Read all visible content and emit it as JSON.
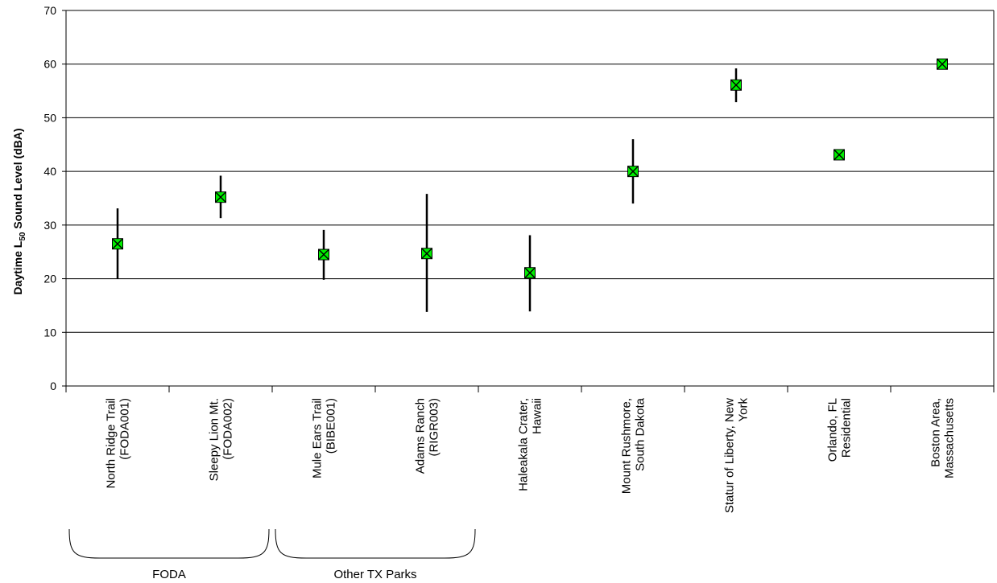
{
  "chart_data": {
    "type": "scatter",
    "title": "",
    "ylabel_parts": {
      "before": "Daytime  L",
      "subscript": "50",
      "after": " Sound Level (dBA)"
    },
    "xlabel": "",
    "ylim": [
      0,
      70
    ],
    "ytick_labels": [
      "0",
      "10",
      "20",
      "30",
      "40",
      "50",
      "60",
      "70"
    ],
    "grid": true,
    "legend": "none",
    "marker_color": "#00ee00",
    "marker_edge_color": "#000000",
    "categories": [
      [
        "North Ridge Trail",
        "(FODA001)"
      ],
      [
        "Sleepy Lion Mt.",
        "(FODA002)"
      ],
      [
        "Mule Ears Trail",
        "(BIBE001)"
      ],
      [
        "Adams Ranch",
        "(RIGR003)"
      ],
      [
        "Haleakala Crater,",
        "Hawaii"
      ],
      [
        "Mount Rushmore,",
        "South Dakota"
      ],
      [
        "Statur of Liberty, New",
        "York"
      ],
      [
        "Orlando, FL",
        "Residential"
      ],
      [
        "Boston Area,",
        "Massachusetts"
      ]
    ],
    "values": [
      26.5,
      35.2,
      24.5,
      24.7,
      21.1,
      40.0,
      56.1,
      43.1,
      60.0
    ],
    "error_low": [
      20.0,
      31.3,
      19.8,
      13.8,
      13.9,
      34.0,
      52.9,
      null,
      null
    ],
    "error_high": [
      33.1,
      39.2,
      29.1,
      35.8,
      28.1,
      46.0,
      59.2,
      null,
      null
    ],
    "groups": [
      {
        "label": "FODA",
        "start": 0,
        "end": 1
      },
      {
        "label": "Other TX Parks",
        "start": 2,
        "end": 3
      }
    ]
  }
}
